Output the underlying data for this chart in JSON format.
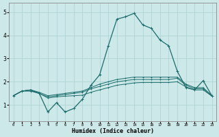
{
  "xlabel": "Humidex (Indice chaleur)",
  "ylabel": "",
  "bg_color": "#cce8e8",
  "grid_color": "#afd4d4",
  "line_color": "#1a6b6b",
  "xlim": [
    -0.5,
    23.5
  ],
  "ylim": [
    0.3,
    5.4
  ],
  "xticks": [
    0,
    1,
    2,
    3,
    4,
    5,
    6,
    7,
    8,
    9,
    10,
    11,
    12,
    13,
    14,
    15,
    16,
    17,
    18,
    19,
    20,
    21,
    22,
    23
  ],
  "yticks": [
    1,
    2,
    3,
    4,
    5
  ],
  "lines": [
    [
      1.4,
      1.6,
      1.6,
      1.5,
      0.7,
      1.1,
      0.7,
      0.85,
      1.25,
      1.85,
      2.3,
      3.55,
      4.7,
      4.8,
      4.95,
      4.45,
      4.3,
      3.8,
      3.55,
      2.45,
      1.75,
      1.65,
      2.05,
      1.4
    ],
    [
      1.4,
      1.6,
      1.65,
      1.5,
      1.35,
      1.4,
      1.45,
      1.5,
      1.55,
      1.7,
      1.8,
      1.9,
      2.0,
      2.05,
      2.1,
      2.1,
      2.1,
      2.1,
      2.1,
      2.15,
      1.85,
      1.7,
      1.7,
      1.4
    ],
    [
      1.4,
      1.6,
      1.65,
      1.55,
      1.4,
      1.45,
      1.5,
      1.55,
      1.6,
      1.75,
      1.9,
      2.0,
      2.1,
      2.15,
      2.2,
      2.2,
      2.2,
      2.2,
      2.2,
      2.2,
      1.9,
      1.75,
      1.75,
      1.4
    ],
    [
      1.4,
      1.6,
      1.65,
      1.5,
      1.3,
      1.35,
      1.38,
      1.4,
      1.42,
      1.55,
      1.65,
      1.75,
      1.85,
      1.9,
      1.95,
      1.97,
      1.97,
      1.97,
      1.97,
      2.0,
      1.78,
      1.65,
      1.65,
      1.38
    ]
  ]
}
